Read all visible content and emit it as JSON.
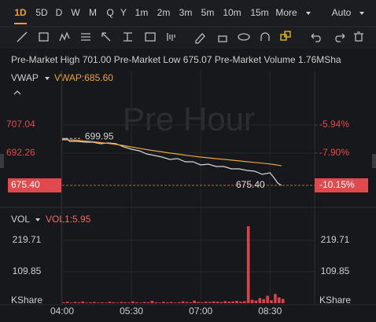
{
  "toolbar": {
    "timeframes": [
      "1D",
      "5D",
      "D",
      "W",
      "M",
      "Q",
      "Y",
      "1m",
      "2m",
      "3m",
      "5m",
      "10m",
      "15m",
      "More"
    ],
    "active": "1D",
    "scale": "Auto"
  },
  "info": [
    {
      "label": "Pre-Market High",
      "value": "701.00"
    },
    {
      "label": "Pre-Market Low",
      "value": "675.07"
    },
    {
      "label": "Pre-Market Volume",
      "value": "1.76MSha"
    }
  ],
  "chart_data": [
    {
      "type": "line",
      "watermark": "Pre Hour",
      "indicator_label": "VWAP:685.60",
      "x": [
        "04:00",
        "04:05",
        "04:10",
        "04:20",
        "04:30",
        "04:40",
        "04:50",
        "05:00",
        "05:10",
        "05:20",
        "05:30",
        "05:40",
        "05:50",
        "06:00",
        "06:10",
        "06:20",
        "06:30",
        "06:40",
        "06:50",
        "07:00",
        "07:10",
        "07:20",
        "07:30",
        "07:40",
        "07:50",
        "08:00",
        "08:10",
        "08:20",
        "08:30",
        "08:35",
        "08:40",
        "08:45"
      ],
      "series": [
        {
          "color": "#d6d6d6",
          "values": [
            699.24,
            699.95,
            698.42,
            698.42,
            698.01,
            698.01,
            697.19,
            697.6,
            697.19,
            695.54,
            694.31,
            693.49,
            691.85,
            691.03,
            690.21,
            688.98,
            689.39,
            687.74,
            687.74,
            686.1,
            686.51,
            685.28,
            685.28,
            684.05,
            684.05,
            683.23,
            682.82,
            681.18,
            682.0,
            679.53,
            676.66,
            675.4
          ]
        },
        {
          "name": "VWAP",
          "color": "#e8a33d",
          "values": [
            699.24,
            699.3,
            699.2,
            699.0,
            698.6,
            698.2,
            697.8,
            697.3,
            696.8,
            696.2,
            695.5,
            694.8,
            694.1,
            693.5,
            692.9,
            692.3,
            691.8,
            691.2,
            690.7,
            690.2,
            689.8,
            689.4,
            689.0,
            688.6,
            688.2,
            687.8,
            687.4,
            687.0,
            686.6,
            686.3,
            686.0,
            685.6
          ]
        }
      ],
      "annotation": {
        "x": "04:05",
        "value": 699.95
      },
      "xlim": [
        "04:00",
        "09:28"
      ],
      "ylim": [
        664.75,
        735.37
      ],
      "yticks": [
        707.04,
        692.26
      ],
      "y2lim": [
        -11.57,
        -2.17
      ],
      "y2ticks": [
        {
          "value": -5.94,
          "label": "-5.94%"
        },
        {
          "value": -7.9,
          "label": "-7.90%"
        }
      ],
      "last_price": {
        "value": 675.4,
        "label": "675.40"
      },
      "last_change": {
        "value": -10.15,
        "label": "-10.15%"
      }
    },
    {
      "type": "bar",
      "title": "VOL",
      "indicator_label": "VOL1:5.95",
      "color": "#d9434a",
      "y_unit": "KShare",
      "x": [
        "04:00",
        "04:05",
        "04:10",
        "04:15",
        "04:20",
        "04:25",
        "04:30",
        "04:35",
        "04:40",
        "04:45",
        "04:50",
        "04:55",
        "05:00",
        "05:05",
        "05:10",
        "05:15",
        "05:20",
        "05:25",
        "05:30",
        "05:35",
        "05:40",
        "05:45",
        "05:50",
        "05:55",
        "06:00",
        "06:05",
        "06:10",
        "06:15",
        "06:20",
        "06:25",
        "06:30",
        "06:35",
        "06:40",
        "06:45",
        "06:50",
        "06:55",
        "07:00",
        "07:05",
        "07:10",
        "07:15",
        "07:20",
        "07:25",
        "07:30",
        "07:35",
        "07:40",
        "07:45",
        "07:50",
        "07:55",
        "08:00",
        "08:05",
        "08:10",
        "08:15",
        "08:20",
        "08:25",
        "08:30",
        "08:35",
        "08:40",
        "08:45"
      ],
      "values": [
        3,
        5,
        2,
        4,
        3,
        6,
        2,
        3,
        4,
        2,
        3,
        2,
        5,
        3,
        2,
        4,
        3,
        2,
        6,
        3,
        2,
        4,
        3,
        8,
        3,
        2,
        5,
        3,
        4,
        2,
        3,
        6,
        4,
        3,
        9,
        4,
        3,
        5,
        4,
        6,
        5,
        4,
        7,
        5,
        6,
        8,
        5,
        7,
        269,
        12,
        9,
        18,
        14,
        26,
        10,
        32,
        20,
        15
      ],
      "xlim": [
        "04:00",
        "09:28"
      ],
      "xticks": [
        "04:00",
        "05:30",
        "07:00",
        "08:30"
      ],
      "ylim": [
        0,
        324.1
      ],
      "yticks": [
        109.85,
        219.71
      ]
    }
  ]
}
